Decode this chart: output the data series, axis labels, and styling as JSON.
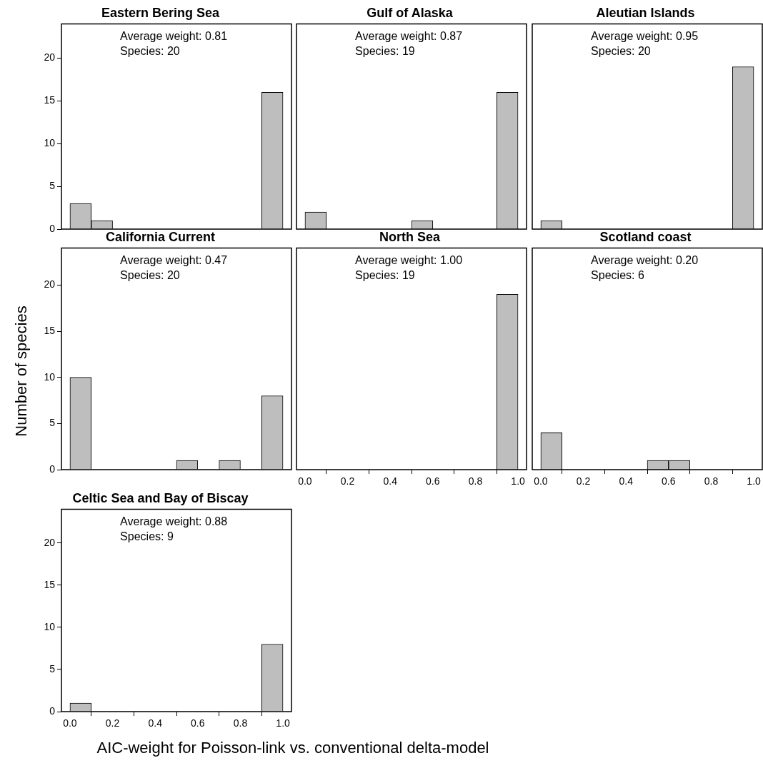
{
  "chart_data": [
    {
      "type": "histogram",
      "title": "Eastern Bering Sea",
      "bins": [
        0,
        0.1,
        0.2,
        0.3,
        0.4,
        0.5,
        0.6,
        0.7,
        0.8,
        0.9,
        1.0
      ],
      "values": [
        3,
        1,
        0,
        0,
        0,
        0,
        0,
        0,
        0,
        16
      ],
      "color": "#bebebe",
      "xlim": [
        -0.04,
        1.04
      ],
      "ylim": [
        0,
        24
      ],
      "yticks": [
        0,
        5,
        10,
        15,
        20
      ],
      "tick_labels": "y",
      "annotations": [
        "Average weight: 0.81",
        "Species: 20"
      ]
    },
    {
      "type": "histogram",
      "title": "Gulf of Alaska",
      "bins": [
        0,
        0.1,
        0.2,
        0.3,
        0.4,
        0.5,
        0.6,
        0.7,
        0.8,
        0.9,
        1.0
      ],
      "values": [
        2,
        0,
        0,
        0,
        0,
        1,
        0,
        0,
        0,
        16
      ],
      "color": "#bebebe",
      "xlim": [
        -0.04,
        1.04
      ],
      "ylim": [
        0,
        24
      ],
      "tick_labels": false,
      "annotations": [
        "Average weight: 0.87",
        "Species: 19"
      ]
    },
    {
      "type": "histogram",
      "title": "Aleutian Islands",
      "bins": [
        0,
        0.1,
        0.2,
        0.3,
        0.4,
        0.5,
        0.6,
        0.7,
        0.8,
        0.9,
        1.0
      ],
      "values": [
        1,
        0,
        0,
        0,
        0,
        0,
        0,
        0,
        0,
        19
      ],
      "color": "#bebebe",
      "xlim": [
        -0.04,
        1.04
      ],
      "ylim": [
        0,
        24
      ],
      "tick_labels": false,
      "annotations": [
        "Average weight: 0.95",
        "Species: 20"
      ]
    },
    {
      "type": "histogram",
      "title": "California Current",
      "ylabel": "Number of species",
      "bins": [
        0,
        0.1,
        0.2,
        0.3,
        0.4,
        0.5,
        0.6,
        0.7,
        0.8,
        0.9,
        1.0
      ],
      "values": [
        10,
        0,
        0,
        0,
        0,
        1,
        0,
        1,
        0,
        8
      ],
      "color": "#bebebe",
      "xlim": [
        -0.04,
        1.04
      ],
      "ylim": [
        0,
        24
      ],
      "yticks": [
        0,
        5,
        10,
        15,
        20
      ],
      "tick_labels": "y",
      "annotations": [
        "Average weight: 0.47",
        "Species: 20"
      ]
    },
    {
      "type": "histogram",
      "title": "North Sea",
      "bins": [
        0,
        0.1,
        0.2,
        0.3,
        0.4,
        0.5,
        0.6,
        0.7,
        0.8,
        0.9,
        1.0
      ],
      "values": [
        0,
        0,
        0,
        0,
        0,
        0,
        0,
        0,
        0,
        19
      ],
      "color": "#bebebe",
      "xlim": [
        -0.04,
        1.04
      ],
      "xticks": [
        {
          "value": 0,
          "label": "0.0"
        },
        {
          "value": 0.2,
          "label": "0.2"
        },
        {
          "value": 0.4,
          "label": "0.4"
        },
        {
          "value": 0.6,
          "label": "0.6"
        },
        {
          "value": 0.8,
          "label": "0.8"
        },
        {
          "value": 1,
          "label": "1.0"
        }
      ],
      "ylim": [
        0,
        24
      ],
      "tick_labels": "x",
      "annotations": [
        "Average weight: 1.00",
        "Species: 19"
      ]
    },
    {
      "type": "histogram",
      "title": "Scotland coast",
      "bins": [
        0,
        0.1,
        0.2,
        0.3,
        0.4,
        0.5,
        0.6,
        0.7,
        0.8,
        0.9,
        1.0
      ],
      "values": [
        4,
        0,
        0,
        0,
        0,
        1,
        1,
        0,
        0,
        0
      ],
      "color": "#bebebe",
      "xlim": [
        -0.04,
        1.04
      ],
      "xticks": [
        {
          "value": 0,
          "label": "0.0"
        },
        {
          "value": 0.2,
          "label": "0.2"
        },
        {
          "value": 0.4,
          "label": "0.4"
        },
        {
          "value": 0.6,
          "label": "0.6"
        },
        {
          "value": 0.8,
          "label": "0.8"
        },
        {
          "value": 1,
          "label": "1.0"
        }
      ],
      "ylim": [
        0,
        24
      ],
      "tick_labels": "x",
      "annotations": [
        "Average weight: 0.20",
        "Species: 6"
      ]
    },
    {
      "type": "histogram",
      "title": "Celtic Sea and Bay of Biscay",
      "xlabel": "AIC-weight for Poisson-link vs. conventional delta-model",
      "bins": [
        0,
        0.1,
        0.2,
        0.3,
        0.4,
        0.5,
        0.6,
        0.7,
        0.8,
        0.9,
        1.0
      ],
      "values": [
        1,
        0,
        0,
        0,
        0,
        0,
        0,
        0,
        0,
        8
      ],
      "color": "#bebebe",
      "xlim": [
        -0.04,
        1.04
      ],
      "xticks": [
        {
          "value": 0,
          "label": "0.0"
        },
        {
          "value": 0.2,
          "label": "0.2"
        },
        {
          "value": 0.4,
          "label": "0.4"
        },
        {
          "value": 0.6,
          "label": "0.6"
        },
        {
          "value": 0.8,
          "label": "0.8"
        },
        {
          "value": 1,
          "label": "1.0"
        }
      ],
      "ylim": [
        0,
        24
      ],
      "yticks": [
        0,
        5,
        10,
        15,
        20
      ],
      "annotations": [
        "Average weight: 0.88",
        "Species: 9"
      ]
    }
  ]
}
